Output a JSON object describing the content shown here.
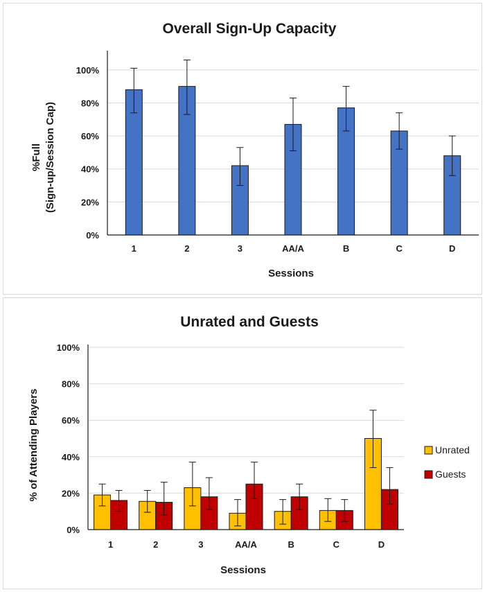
{
  "chart_data": [
    {
      "type": "bar",
      "title": "Overall Sign-Up Capacity",
      "xlabel": "Sessions",
      "ylabel_lines": [
        "%Full",
        "(Sign-up/Session Cap)"
      ],
      "categories": [
        "1",
        "2",
        "3",
        "AA/A",
        "B",
        "C",
        "D"
      ],
      "yticks": [
        "0%",
        "20%",
        "40%",
        "60%",
        "80%",
        "100%"
      ],
      "ylim": [
        0,
        110
      ],
      "grid": true,
      "series": [
        {
          "values": [
            88,
            90,
            42,
            67,
            77,
            63,
            48
          ],
          "error_low": [
            14,
            17,
            12,
            16,
            14,
            11,
            12
          ],
          "error_high": [
            13,
            16,
            11,
            16,
            13,
            11,
            12
          ],
          "color": "#4472c4"
        }
      ]
    },
    {
      "type": "bar",
      "title": "Unrated and Guests",
      "xlabel": "Sessions",
      "ylabel_lines": [
        "% of Attending Players"
      ],
      "categories": [
        "1",
        "2",
        "3",
        "AA/A",
        "B",
        "C",
        "D"
      ],
      "yticks": [
        "0%",
        "20%",
        "40%",
        "60%",
        "80%",
        "100%"
      ],
      "ylim": [
        0,
        100
      ],
      "grid": true,
      "legend_position": "right",
      "series": [
        {
          "name": "Unrated",
          "values": [
            19,
            15.5,
            23,
            9,
            10,
            10.5,
            50
          ],
          "error_low": [
            6,
            6,
            10,
            7,
            7,
            6,
            16
          ],
          "error_high": [
            6,
            6,
            14,
            7.5,
            6.5,
            6.5,
            15.5
          ],
          "color": "#ffc000"
        },
        {
          "name": "Guests",
          "values": [
            16,
            15,
            18,
            25,
            18,
            10.5,
            22
          ],
          "error_low": [
            6,
            7,
            7,
            8,
            7,
            6,
            8
          ],
          "error_high": [
            5.5,
            11,
            10.5,
            12,
            7,
            6,
            12
          ],
          "color": "#c00000"
        }
      ]
    }
  ]
}
